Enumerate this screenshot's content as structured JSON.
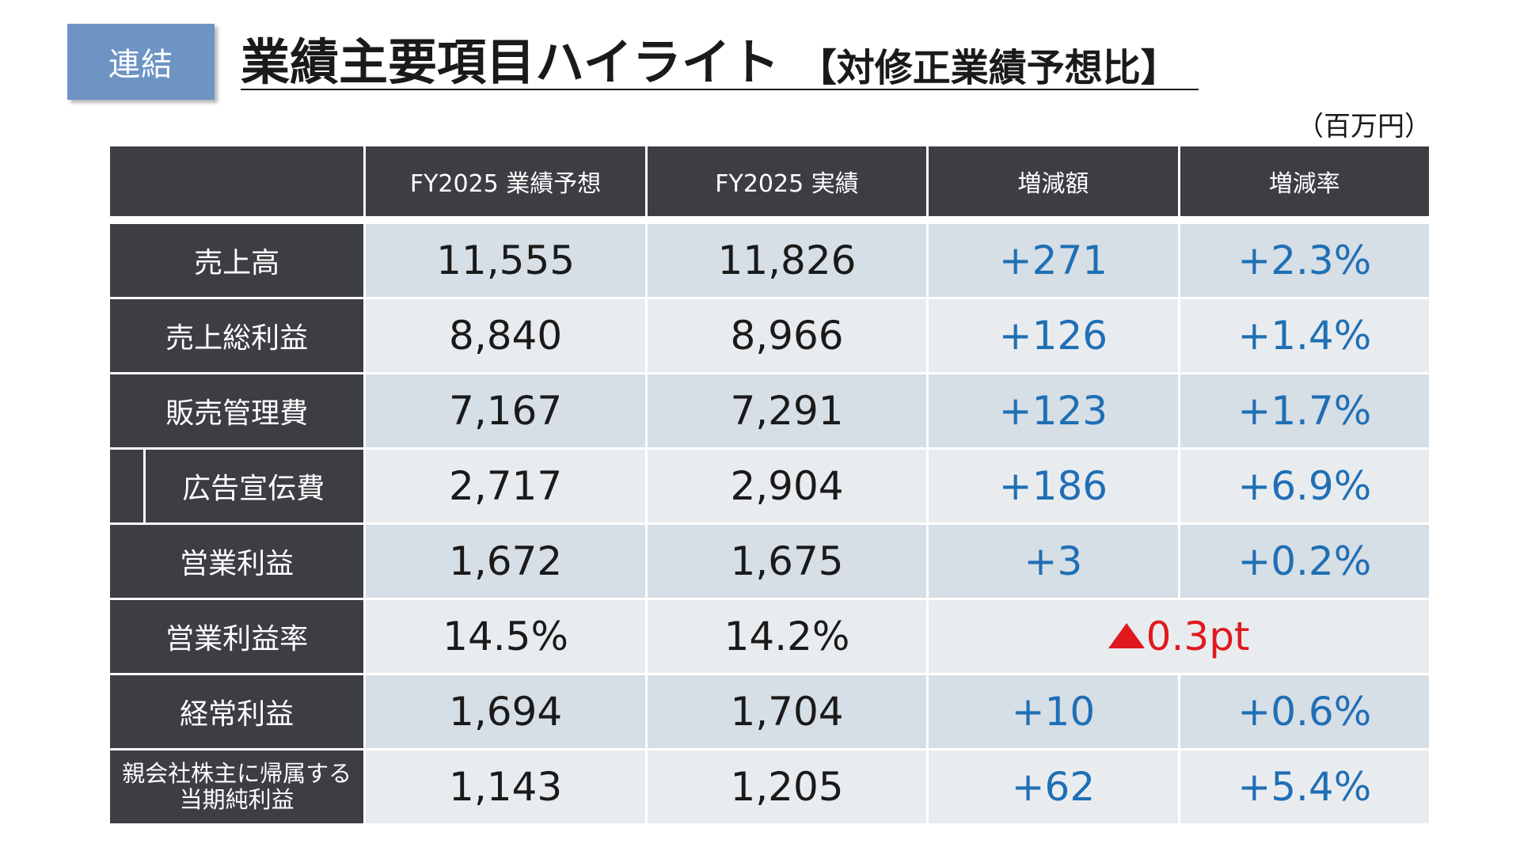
{
  "badge": "連結",
  "title": {
    "main": "業績主要項目ハイライト",
    "sub": "【対修正業績予想比】"
  },
  "unit": "（百万円）",
  "table": {
    "headers": [
      "",
      "FY2025 業績予想",
      "FY2025 実績",
      "増減額",
      "増減率"
    ],
    "rows": [
      {
        "label": "売上高",
        "forecast": "11,555",
        "actual": "11,826",
        "diff": "+271",
        "rate": "+2.3%"
      },
      {
        "label": "売上総利益",
        "forecast": "8,840",
        "actual": "8,966",
        "diff": "+126",
        "rate": "+1.4%"
      },
      {
        "label": "販売管理費",
        "forecast": "7,167",
        "actual": "7,291",
        "diff": "+123",
        "rate": "+1.7%"
      },
      {
        "label": "広告宣伝費",
        "forecast": "2,717",
        "actual": "2,904",
        "diff": "+186",
        "rate": "+6.9%"
      },
      {
        "label": "営業利益",
        "forecast": "1,672",
        "actual": "1,675",
        "diff": "+3",
        "rate": "+0.2%"
      },
      {
        "label": "営業利益率",
        "forecast": "14.5%",
        "actual": "14.2%",
        "change_merged": "0.3pt"
      },
      {
        "label": "経常利益",
        "forecast": "1,694",
        "actual": "1,704",
        "diff": "+10",
        "rate": "+0.6%"
      },
      {
        "label_line1": "親会社株主に帰属する",
        "label_line2": "当期純利益",
        "forecast": "1,143",
        "actual": "1,205",
        "diff": "+62",
        "rate": "+5.4%"
      }
    ]
  },
  "colors": {
    "header_bg": "#3c3e43",
    "badge_bg": "#6e94c4",
    "positive": "#1f6fb5",
    "negative": "#e0191f",
    "row_band_a": "#d6dee6",
    "row_band_b": "#e9ecef"
  },
  "icons": {
    "decrease_marker": "red-up-triangle"
  }
}
